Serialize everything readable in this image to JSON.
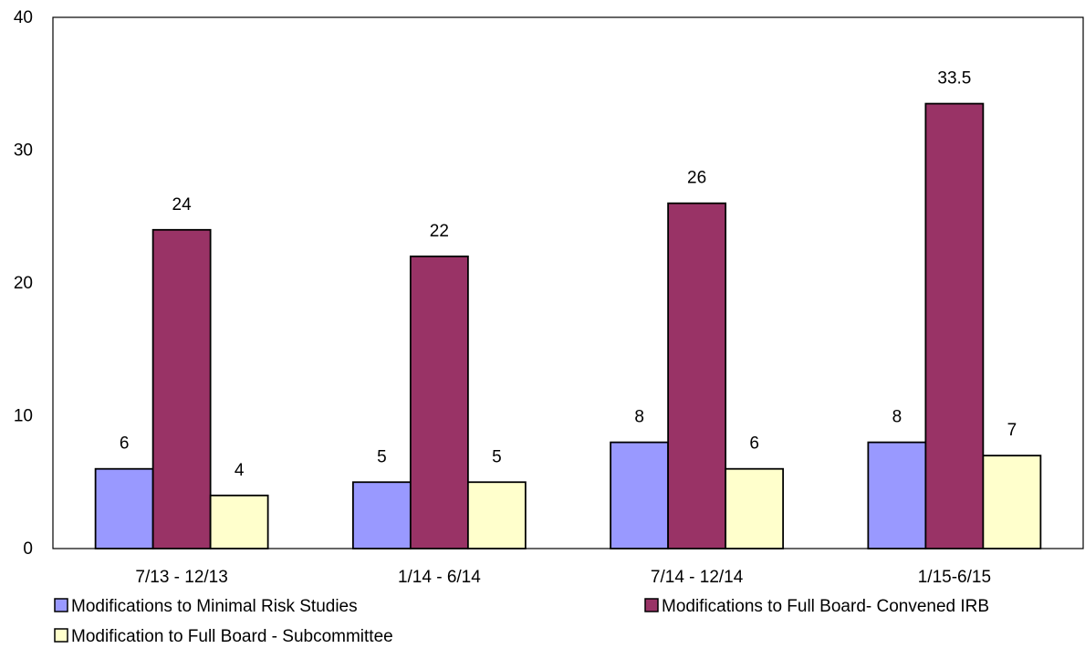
{
  "chart_data": {
    "type": "bar",
    "categories": [
      "7/13 - 12/13",
      "1/14 - 6/14",
      "7/14 - 12/14",
      "1/15-6/15"
    ],
    "series": [
      {
        "name": "Modifications to Minimal Risk Studies",
        "values": [
          6,
          5,
          8,
          8
        ],
        "color": "#9999ff"
      },
      {
        "name": "Modifications to Full Board- Convened IRB",
        "values": [
          24,
          22,
          26,
          33.5
        ],
        "color": "#993366"
      },
      {
        "name": "Modification to Full Board - Subcommittee",
        "values": [
          4,
          5,
          6,
          7
        ],
        "color": "#ffffcc"
      }
    ],
    "title": "",
    "xlabel": "",
    "ylabel": "",
    "ylim": [
      0,
      40
    ],
    "yticks": [
      0,
      10,
      20,
      30,
      40
    ],
    "grid": false,
    "legend_position": "bottom"
  }
}
